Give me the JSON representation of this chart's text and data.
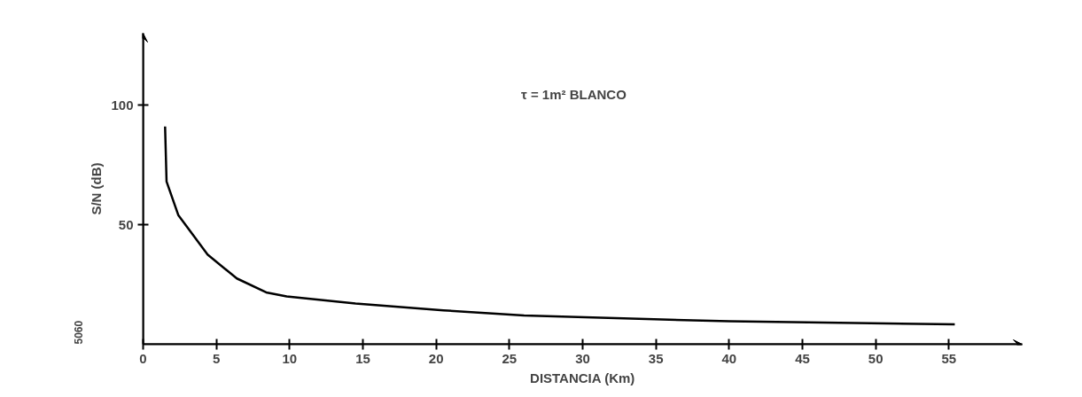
{
  "chart_data": {
    "type": "line",
    "xlabel": "DISTANCIA (Km)",
    "ylabel": "S/N (dB)",
    "annotations": [
      "τ = 1m²  BLANCO",
      "5060"
    ],
    "x": [
      1.5,
      1.6,
      2.4,
      4.4,
      6.4,
      8.4,
      9.8,
      14.5,
      20.5,
      26,
      40,
      55.4
    ],
    "series": [
      {
        "color": "#000000",
        "values": [
          91,
          68,
          54,
          37.5,
          27.5,
          21.7,
          20,
          17,
          14.2,
          12,
          9.6,
          8.3
        ]
      }
    ],
    "xlim": [
      0,
      60
    ],
    "ylim": [
      0,
      130
    ],
    "xticks": [
      0,
      5,
      10,
      15,
      20,
      25,
      30,
      35,
      40,
      45,
      50,
      55
    ],
    "yticks": [
      50,
      100
    ],
    "grid": false,
    "marker": "none",
    "line_style": "solid"
  }
}
